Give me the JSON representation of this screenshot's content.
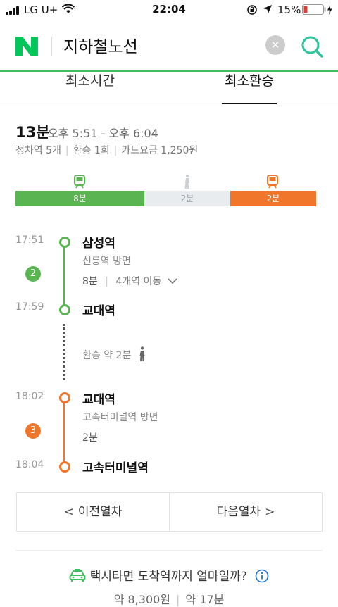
{
  "status_bar": {
    "carrier": "LG U+",
    "time": "22:04",
    "battery": "15%"
  },
  "header": {
    "logo": "N",
    "title": "지하철노선"
  },
  "tabs": [
    {
      "label": "최소시간",
      "active": false
    },
    {
      "label": "최소환승",
      "active": true
    }
  ],
  "summary": {
    "duration": "13분",
    "range": "오후 5:51 - 오후 6:04",
    "stops": "정차역 5개",
    "transfers": "환승 1회",
    "fare": "카드요금 1,250원"
  },
  "segments": [
    {
      "label": "8분",
      "minutes": 8,
      "color": "#5bb452",
      "icon": "train-icon"
    },
    {
      "label": "2분",
      "minutes": 2,
      "color": "#e9ecee",
      "icon": "walk-icon"
    },
    {
      "label": "2분",
      "minutes": 2,
      "color": "#f0762b",
      "icon": "train-icon"
    }
  ],
  "timeline": {
    "leg1": {
      "line": "2",
      "color": "#5bb452",
      "depart_time": "17:51",
      "depart_station": "삼성역",
      "direction": "선릉역 방면",
      "duration": "8분",
      "stops": "4개역 이동",
      "arrive_time": "17:59",
      "arrive_station": "교대역"
    },
    "transfer": {
      "label": "환승 약 2분"
    },
    "leg2": {
      "line": "3",
      "color": "#f0762b",
      "depart_time": "18:02",
      "depart_station": "교대역",
      "direction": "고속터미널역 방면",
      "duration": "2분",
      "arrive_time": "18:04",
      "arrive_station": "고속터미널역"
    }
  },
  "nav": {
    "prev": "이전열차",
    "next": "다음열차"
  },
  "taxi": {
    "question": "택시타면 도착역까지 얼마일까?",
    "price": "약 8,300원",
    "time": "약 17분"
  },
  "colors": {
    "brand": "#03c75a",
    "line2": "#5bb452",
    "line3": "#f0762b"
  }
}
